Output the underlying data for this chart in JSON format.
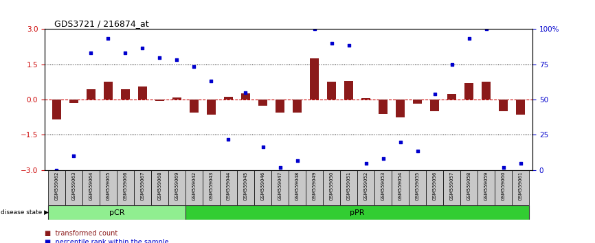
{
  "title": "GDS3721 / 216874_at",
  "samples": [
    "GSM559062",
    "GSM559063",
    "GSM559064",
    "GSM559065",
    "GSM559066",
    "GSM559067",
    "GSM559068",
    "GSM559069",
    "GSM559042",
    "GSM559043",
    "GSM559044",
    "GSM559045",
    "GSM559046",
    "GSM559047",
    "GSM559048",
    "GSM559049",
    "GSM559050",
    "GSM559051",
    "GSM559052",
    "GSM559053",
    "GSM559054",
    "GSM559055",
    "GSM559056",
    "GSM559057",
    "GSM559058",
    "GSM559059",
    "GSM559060",
    "GSM559061"
  ],
  "bar_values": [
    -0.85,
    -0.15,
    0.45,
    0.75,
    0.45,
    0.55,
    -0.05,
    0.08,
    -0.55,
    -0.65,
    0.13,
    0.28,
    -0.25,
    -0.55,
    -0.55,
    1.75,
    0.75,
    0.8,
    0.07,
    -0.6,
    -0.75,
    -0.18,
    -0.5,
    0.25,
    0.7,
    0.75,
    -0.5,
    -0.65
  ],
  "blue_values": [
    -3.0,
    -2.4,
    2.0,
    2.6,
    2.0,
    2.2,
    1.8,
    1.7,
    1.4,
    0.8,
    -1.7,
    0.3,
    -2.0,
    -2.9,
    -2.6,
    3.0,
    2.4,
    2.3,
    -2.7,
    -2.5,
    -1.8,
    -2.2,
    0.25,
    1.5,
    2.6,
    3.0,
    -2.9,
    -2.7
  ],
  "group1_label": "pCR",
  "group2_label": "pPR",
  "group1_count": 8,
  "group2_count": 20,
  "ylim": [
    -3,
    3
  ],
  "yticks_left": [
    -3,
    -1.5,
    0,
    1.5,
    3
  ],
  "bar_color": "#8B1A1A",
  "blue_color": "#0000CD",
  "hline_color": "#CC0000",
  "dotted_color": "black",
  "background_samples": "#c8c8c8",
  "group1_bg": "#90EE90",
  "group2_bg": "#32CD32",
  "legend_bar": "transformed count",
  "legend_blue": "percentile rank within the sample"
}
